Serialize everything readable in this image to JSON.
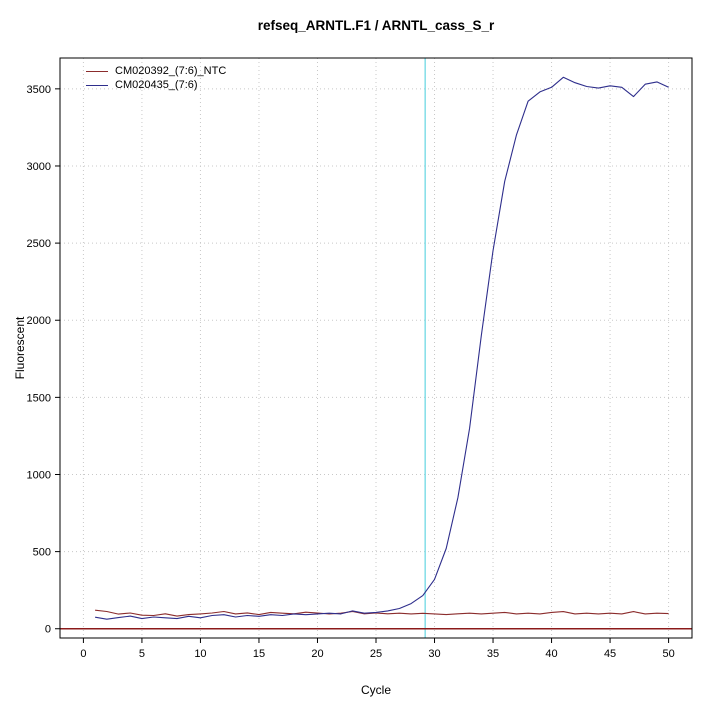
{
  "chart_data": {
    "type": "line",
    "title": "refseq_ARNTL.F1 / ARNTL_cass_S_r",
    "xlabel": "Cycle",
    "ylabel": "Fluorescent",
    "xlim": [
      -2,
      52
    ],
    "ylim": [
      -60,
      3700
    ],
    "xticks": [
      0,
      5,
      10,
      15,
      20,
      25,
      30,
      35,
      40,
      45,
      50
    ],
    "yticks": [
      0,
      500,
      1000,
      1500,
      2000,
      2500,
      3000,
      3500
    ],
    "grid": "dotted",
    "legend_position": "top-left",
    "x": [
      1,
      2,
      3,
      4,
      5,
      6,
      7,
      8,
      9,
      10,
      11,
      12,
      13,
      14,
      15,
      16,
      17,
      18,
      19,
      20,
      21,
      22,
      23,
      24,
      25,
      26,
      27,
      28,
      29,
      30,
      31,
      32,
      33,
      34,
      35,
      36,
      37,
      38,
      39,
      40,
      41,
      42,
      43,
      44,
      45,
      46,
      47,
      48,
      49,
      50
    ],
    "series": [
      {
        "name": "CM020392_(7:6)_NTC",
        "color": "#8b2c2c",
        "values": [
          120,
          112,
          95,
          102,
          88,
          86,
          97,
          82,
          92,
          96,
          102,
          112,
          96,
          103,
          92,
          106,
          101,
          97,
          107,
          102,
          96,
          101,
          112,
          97,
          102,
          97,
          101,
          96,
          100,
          96,
          92,
          97,
          101,
          96,
          101,
          106,
          96,
          101,
          96,
          106,
          111,
          96,
          101,
          96,
          101,
          96,
          111,
          96,
          101,
          98
        ]
      },
      {
        "name": "CM020435_(7:6)",
        "color": "#2e2e8c",
        "values": [
          75,
          62,
          72,
          82,
          66,
          76,
          71,
          66,
          81,
          71,
          86,
          91,
          76,
          86,
          81,
          91,
          86,
          96,
          91,
          96,
          101,
          96,
          116,
          101,
          106,
          116,
          131,
          163,
          215,
          320,
          520,
          850,
          1300,
          1900,
          2450,
          2900,
          3200,
          3420,
          3480,
          3510,
          3575,
          3540,
          3515,
          3505,
          3520,
          3510,
          3450,
          3530,
          3545,
          3510
        ]
      }
    ],
    "threshold_line": {
      "y": 0,
      "color": "#8b1a1a"
    },
    "ct_line": {
      "x": 29.2,
      "color": "#6fd9e4"
    },
    "grid_color": "#c8c8c8",
    "axis_color": "#000000"
  }
}
